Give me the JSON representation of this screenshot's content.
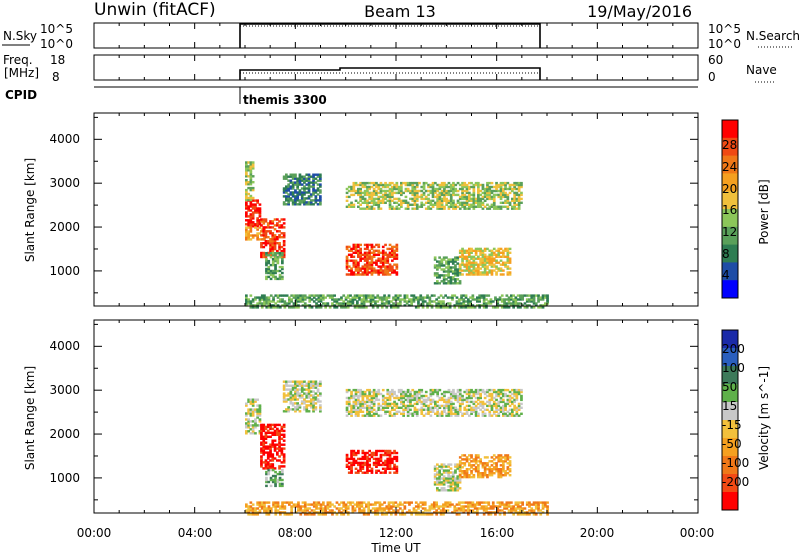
{
  "header": {
    "title": "Unwin (fitACF)",
    "beam": "Beam 13",
    "date": "19/May/2016"
  },
  "sky_panel": {
    "label": "N.Sky",
    "tick_top": "10^5",
    "tick_bottom": "10^0",
    "right_tick_top": "10^5",
    "right_tick_bottom": "10^0",
    "right_label": "N.Search"
  },
  "freq_panel": {
    "label_line1": "Freq.",
    "label_line2": "[MHz]",
    "tick_top": "18",
    "tick_bottom": "8",
    "right_tick_top": "60",
    "right_tick_bottom": "0",
    "right_label": "Nave"
  },
  "cpid": {
    "label": "CPID",
    "value": "themis 3300"
  },
  "x_axis": {
    "label": "Time UT",
    "ticks": [
      "00:00",
      "04:00",
      "08:00",
      "12:00",
      "16:00",
      "20:00",
      "00:00"
    ]
  },
  "chart_data": [
    {
      "type": "heatmap",
      "ylabel": "Slant Range [km]",
      "yticks": [
        "1000",
        "2000",
        "3000",
        "4000"
      ],
      "colorbar": {
        "label": "Power [dB]",
        "ticks": [
          "4",
          "8",
          "12",
          "16",
          "20",
          "24",
          "28"
        ],
        "colors": [
          "#0000ff",
          "#1e4da6",
          "#2e7d52",
          "#5aa05a",
          "#8cc65a",
          "#f0c03c",
          "#f5a020",
          "#f07818",
          "#f04a14",
          "#ff0000"
        ]
      },
      "regions": [
        {
          "t": [
            6.0,
            6.6
          ],
          "r": [
            2000,
            2600
          ],
          "level": 9
        },
        {
          "t": [
            6.0,
            6.8
          ],
          "r": [
            1700,
            2000
          ],
          "level": 6
        },
        {
          "t": [
            6.0,
            6.3
          ],
          "r": [
            2600,
            3500
          ],
          "level": 4
        },
        {
          "t": [
            6.6,
            7.5
          ],
          "r": [
            1300,
            2200
          ],
          "level": 8
        },
        {
          "t": [
            6.8,
            7.5
          ],
          "r": [
            800,
            1400
          ],
          "level": 3
        },
        {
          "t": [
            7.5,
            9.0
          ],
          "r": [
            2500,
            3200
          ],
          "level": 2
        },
        {
          "t": [
            10.0,
            17.0
          ],
          "r": [
            2400,
            3000
          ],
          "level": 4
        },
        {
          "t": [
            10.0,
            12.0
          ],
          "r": [
            900,
            1600
          ],
          "level": 8
        },
        {
          "t": [
            13.5,
            14.5
          ],
          "r": [
            700,
            1300
          ],
          "level": 3
        },
        {
          "t": [
            14.5,
            16.5
          ],
          "r": [
            900,
            1500
          ],
          "level": 5
        },
        {
          "t": [
            6.0,
            18.0
          ],
          "r": [
            150,
            450
          ],
          "level": 3
        }
      ]
    },
    {
      "type": "heatmap",
      "ylabel": "Slant Range [km]",
      "yticks": [
        "1000",
        "2000",
        "3000",
        "4000"
      ],
      "colorbar": {
        "label": "Velocity [m s^-1]",
        "ticks": [
          "200",
          "100",
          "50",
          "15",
          "-15",
          "-50",
          "-100",
          "-200"
        ],
        "colors": [
          "#1a2aa8",
          "#2a5fbe",
          "#3d7a5a",
          "#5fb04a",
          "#c8c8c8",
          "#f2c03c",
          "#f5a020",
          "#f07818",
          "#f24a14",
          "#ff0000"
        ]
      },
      "regions": [
        {
          "t": [
            6.0,
            6.6
          ],
          "r": [
            2000,
            2800
          ],
          "level": 4
        },
        {
          "t": [
            6.6,
            7.5
          ],
          "r": [
            1200,
            2200
          ],
          "level": 9
        },
        {
          "t": [
            6.8,
            7.5
          ],
          "r": [
            800,
            1200
          ],
          "level": 3
        },
        {
          "t": [
            7.5,
            9.0
          ],
          "r": [
            2500,
            3200
          ],
          "level": 4
        },
        {
          "t": [
            10.0,
            17.0
          ],
          "r": [
            2400,
            3000
          ],
          "level": 4
        },
        {
          "t": [
            10.0,
            12.0
          ],
          "r": [
            1100,
            1600
          ],
          "level": 9
        },
        {
          "t": [
            13.5,
            14.5
          ],
          "r": [
            700,
            1300
          ],
          "level": 4
        },
        {
          "t": [
            14.5,
            16.5
          ],
          "r": [
            1000,
            1500
          ],
          "level": 6
        },
        {
          "t": [
            6.0,
            18.0
          ],
          "r": [
            150,
            450
          ],
          "level": 6
        }
      ]
    }
  ]
}
